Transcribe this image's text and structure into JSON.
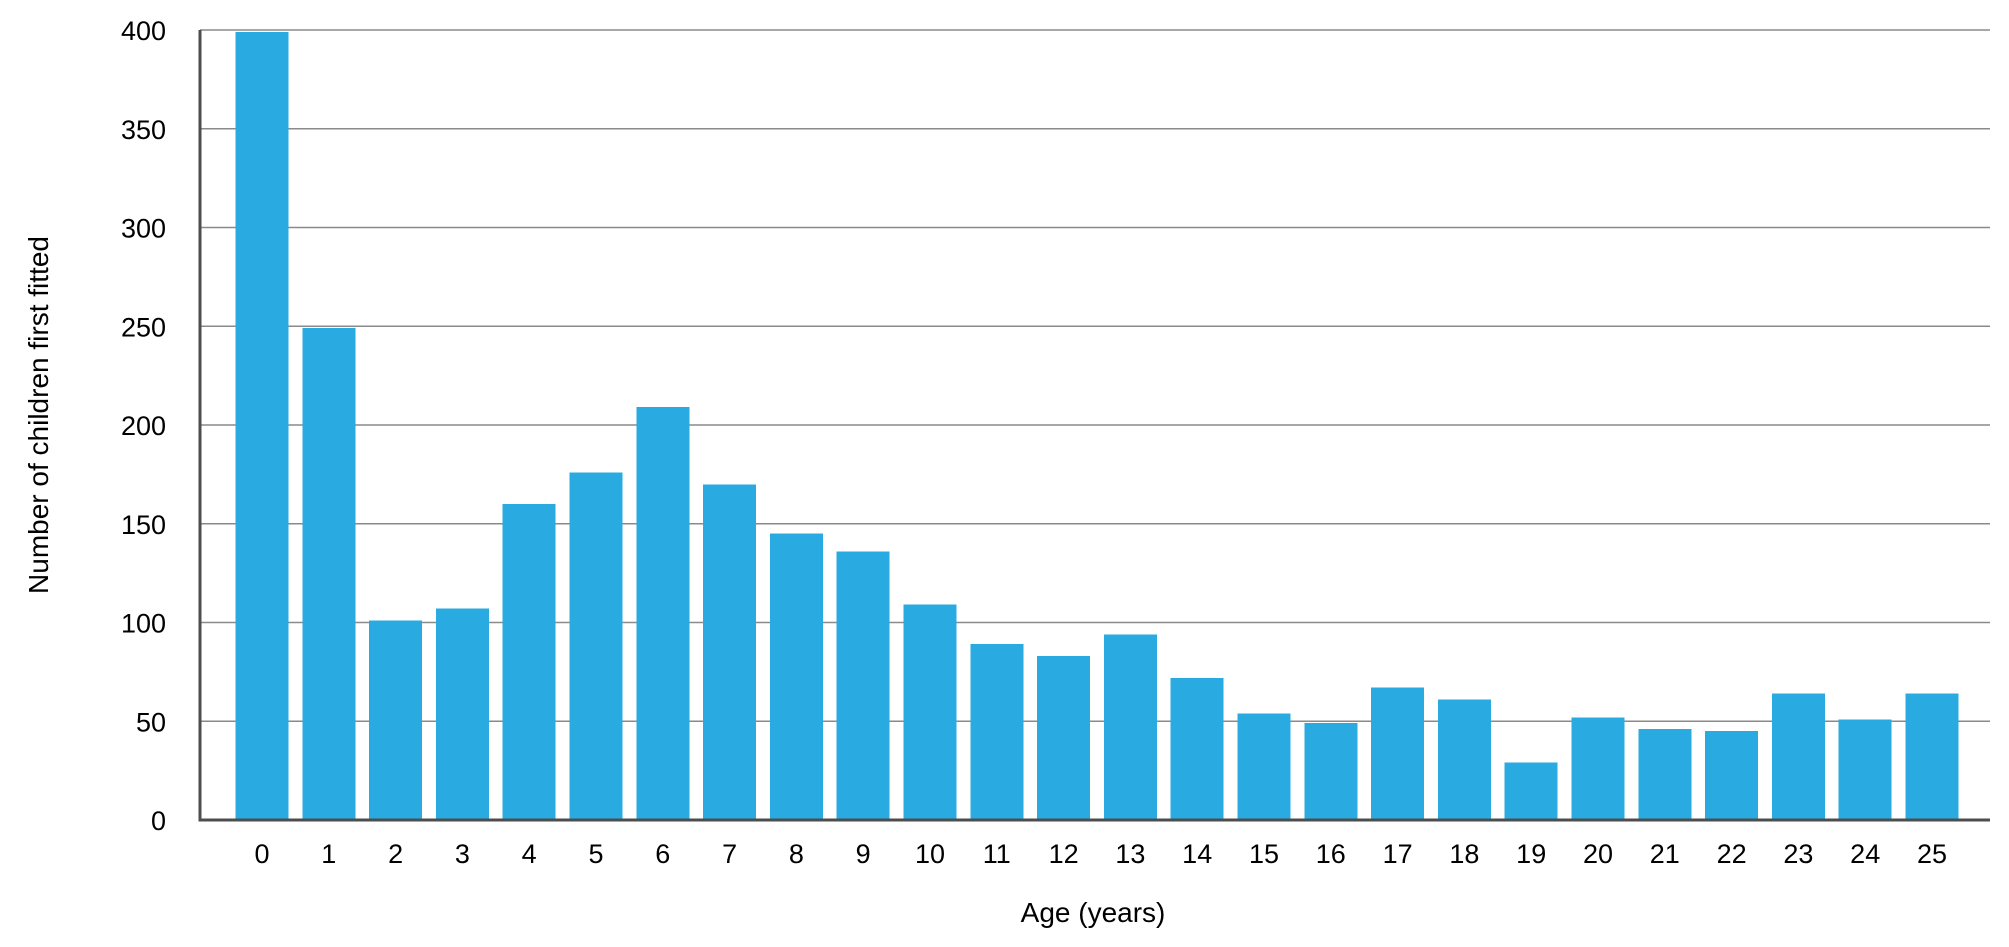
{
  "chart_data": {
    "type": "bar",
    "title": "",
    "xlabel": "Age (years)",
    "ylabel": "Number of children first fitted",
    "categories": [
      "0",
      "1",
      "2",
      "3",
      "4",
      "5",
      "6",
      "7",
      "8",
      "9",
      "10",
      "11",
      "12",
      "13",
      "14",
      "15",
      "16",
      "17",
      "18",
      "19",
      "20",
      "21",
      "22",
      "23",
      "24",
      "25"
    ],
    "series": [
      {
        "values": [
          399,
          249,
          101,
          107,
          160,
          176,
          209,
          170,
          145,
          136,
          109,
          89,
          83,
          94,
          72,
          54,
          49,
          67,
          61,
          29,
          52,
          46,
          45,
          64,
          51,
          64
        ]
      }
    ],
    "ylim": [
      0,
      400
    ],
    "yticks": [
      0,
      50,
      100,
      150,
      200,
      250,
      300,
      350,
      400
    ],
    "grid": true,
    "legend": "none",
    "colors": {
      "bar": "#29abe2",
      "grid": "#8a8a8a",
      "axis": "#4d4d4d"
    }
  }
}
